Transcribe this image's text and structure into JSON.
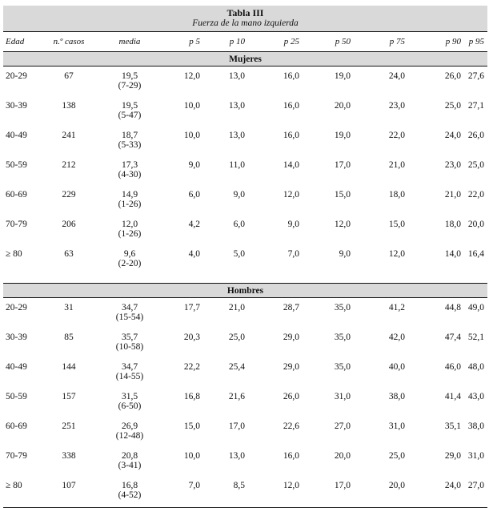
{
  "table": {
    "title": "Tabla III",
    "subtitle": "Fuerza de la mano izquierda",
    "columns": [
      "Edad",
      "n.º casos",
      "media",
      "p 5",
      "p 10",
      "p 25",
      "p 50",
      "p 75",
      "p 90",
      "p 95"
    ],
    "sections": [
      {
        "name": "Mujeres",
        "rows": [
          {
            "edad": "20-29",
            "n": "67",
            "media": "19,5",
            "range": "(7-29)",
            "p": [
              "12,0",
              "13,0",
              "16,0",
              "19,0",
              "24,0",
              "26,0",
              "27,6"
            ]
          },
          {
            "edad": "30-39",
            "n": "138",
            "media": "19,5",
            "range": "(5-47)",
            "p": [
              "10,0",
              "13,0",
              "16,0",
              "20,0",
              "23,0",
              "25,0",
              "27,1"
            ]
          },
          {
            "edad": "40-49",
            "n": "241",
            "media": "18,7",
            "range": "(5-33)",
            "p": [
              "10,0",
              "13,0",
              "16,0",
              "19,0",
              "22,0",
              "24,0",
              "26,0"
            ]
          },
          {
            "edad": "50-59",
            "n": "212",
            "media": "17,3",
            "range": "(4-30)",
            "p": [
              "9,0",
              "11,0",
              "14,0",
              "17,0",
              "21,0",
              "23,0",
              "25,0"
            ]
          },
          {
            "edad": "60-69",
            "n": "229",
            "media": "14,9",
            "range": "(1-26)",
            "p": [
              "6,0",
              "9,0",
              "12,0",
              "15,0",
              "18,0",
              "21,0",
              "22,0"
            ]
          },
          {
            "edad": "70-79",
            "n": "206",
            "media": "12,0",
            "range": "(1-26)",
            "p": [
              "4,2",
              "6,0",
              "9,0",
              "12,0",
              "15,0",
              "18,0",
              "20,0"
            ]
          },
          {
            "edad": "≥ 80",
            "n": "63",
            "media": "9,6",
            "range": "(2-20)",
            "p": [
              "4,0",
              "5,0",
              "7,0",
              "9,0",
              "12,0",
              "14,0",
              "16,4"
            ]
          }
        ]
      },
      {
        "name": "Hombres",
        "rows": [
          {
            "edad": "20-29",
            "n": "31",
            "media": "34,7",
            "range": "(15-54)",
            "p": [
              "17,7",
              "21,0",
              "28,7",
              "35,0",
              "41,2",
              "44,8",
              "49,0"
            ]
          },
          {
            "edad": "30-39",
            "n": "85",
            "media": "35,7",
            "range": "(10-58)",
            "p": [
              "20,3",
              "25,0",
              "29,0",
              "35,0",
              "42,0",
              "47,4",
              "52,1"
            ]
          },
          {
            "edad": "40-49",
            "n": "144",
            "media": "34,7",
            "range": "(14-55)",
            "p": [
              "22,2",
              "25,4",
              "29,0",
              "35,0",
              "40,0",
              "46,0",
              "48,0"
            ]
          },
          {
            "edad": "50-59",
            "n": "157",
            "media": "31,5",
            "range": "(6-50)",
            "p": [
              "16,8",
              "21,6",
              "26,0",
              "31,0",
              "38,0",
              "41,4",
              "43,0"
            ]
          },
          {
            "edad": "60-69",
            "n": "251",
            "media": "26,9",
            "range": "(12-48)",
            "p": [
              "15,0",
              "17,0",
              "22,6",
              "27,0",
              "31,0",
              "35,1",
              "38,0"
            ]
          },
          {
            "edad": "70-79",
            "n": "338",
            "media": "20,8",
            "range": "(3-41)",
            "p": [
              "10,0",
              "13,0",
              "16,0",
              "20,0",
              "25,0",
              "29,0",
              "31,0"
            ]
          },
          {
            "edad": "≥ 80",
            "n": "107",
            "media": "16,8",
            "range": "(4-52)",
            "p": [
              "7,0",
              "8,5",
              "12,0",
              "17,0",
              "20,0",
              "24,0",
              "27,0"
            ]
          }
        ]
      }
    ]
  }
}
